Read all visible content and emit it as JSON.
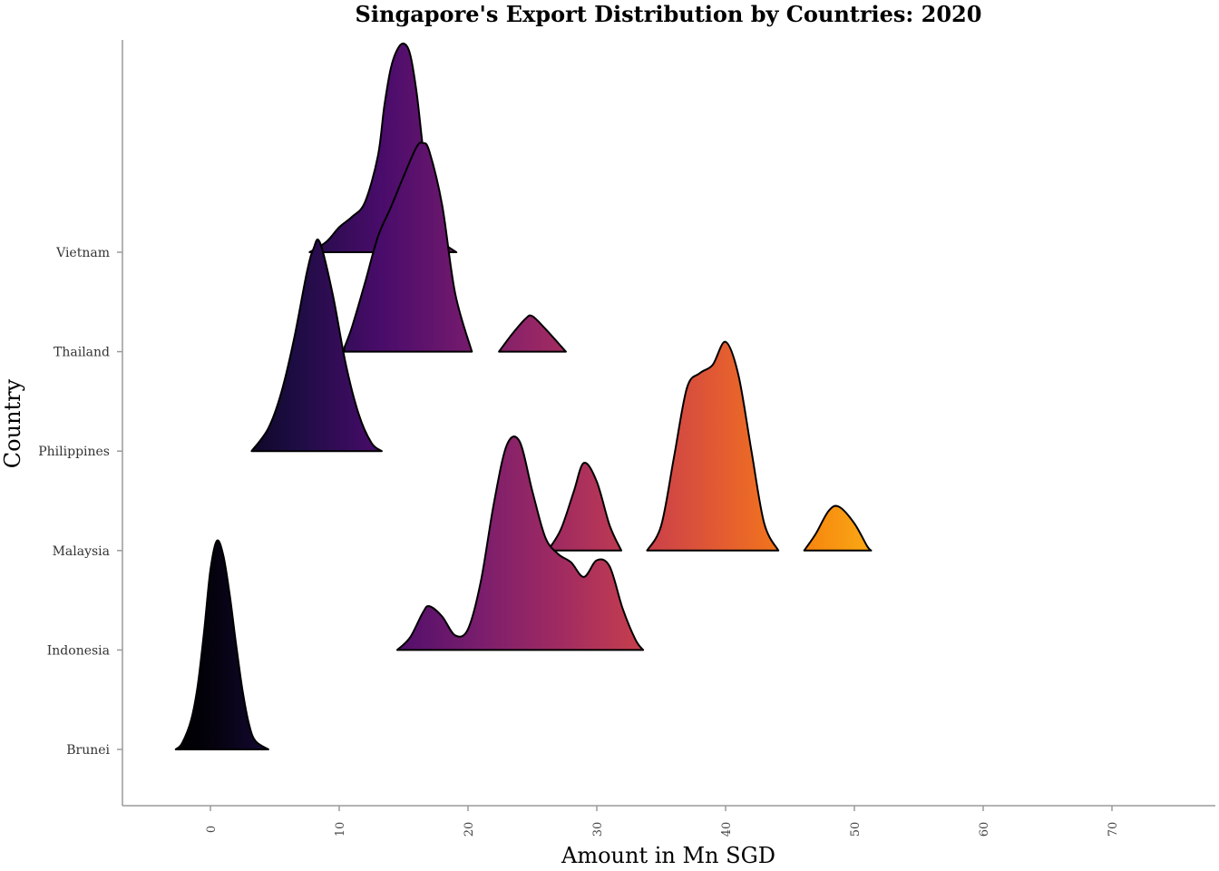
{
  "chart_data": {
    "type": "ridgeline",
    "title": "Singapore's Export Distribution by Countries: 2020",
    "xlabel": "Amount in Mn SGD",
    "ylabel": "Country",
    "xlim": [
      -7,
      78
    ],
    "x_ticks": [
      0,
      10,
      20,
      30,
      40,
      50,
      60,
      70
    ],
    "color_scale": "inferno (by x value)",
    "categories": [
      "Brunei",
      "Indonesia",
      "Malaysia",
      "Philippines",
      "Thailand",
      "Vietnam"
    ],
    "series": [
      {
        "name": "Brunei",
        "x": [
          -2.7,
          -2.2,
          -1.5,
          -1.0,
          -0.5,
          0.0,
          0.5,
          1.0,
          1.5,
          2.0,
          2.5,
          3.0,
          3.5,
          4.5
        ],
        "density": [
          0.0,
          0.03,
          0.14,
          0.3,
          0.56,
          0.86,
          1.0,
          0.93,
          0.74,
          0.5,
          0.28,
          0.12,
          0.04,
          0.0
        ]
      },
      {
        "name": "Indonesia",
        "x": [
          14.5,
          15.5,
          16.5,
          17.0,
          18.0,
          19.0,
          20.0,
          21.0,
          22.0,
          23.0,
          24.0,
          25.0,
          26.0,
          27.0,
          28.0,
          29.0,
          30.0,
          31.0,
          32.0,
          33.0,
          33.6
        ],
        "density": [
          0.0,
          0.06,
          0.18,
          0.21,
          0.16,
          0.07,
          0.1,
          0.33,
          0.7,
          0.98,
          1.0,
          0.76,
          0.54,
          0.46,
          0.42,
          0.35,
          0.43,
          0.4,
          0.2,
          0.05,
          0.0
        ]
      },
      {
        "name": "Malaysia",
        "x": [
          26.2,
          27.2,
          28.2,
          29.0,
          30.0,
          31.0,
          31.9,
          33.9,
          35.0,
          36.0,
          37.0,
          38.0,
          39.0,
          40.0,
          41.0,
          42.0,
          43.0,
          44.1,
          46.1,
          47.0,
          48.0,
          48.8,
          50.0,
          51.0,
          51.3
        ],
        "density": [
          0.0,
          0.1,
          0.28,
          0.42,
          0.33,
          0.12,
          0.0,
          0.0,
          0.12,
          0.45,
          0.78,
          0.85,
          0.89,
          1.0,
          0.84,
          0.48,
          0.13,
          0.0,
          0.0,
          0.08,
          0.19,
          0.21,
          0.13,
          0.02,
          0.0
        ]
      },
      {
        "name": "Philippines",
        "x": [
          3.2,
          4.5,
          5.5,
          6.5,
          7.5,
          8.0,
          8.5,
          9.5,
          10.5,
          11.5,
          12.5,
          13.3
        ],
        "density": [
          0.0,
          0.11,
          0.28,
          0.54,
          0.86,
          0.97,
          1.0,
          0.75,
          0.42,
          0.18,
          0.04,
          0.0
        ]
      },
      {
        "name": "Thailand",
        "x": [
          10.4,
          11.0,
          12.0,
          13.0,
          14.0,
          15.0,
          16.0,
          16.5,
          17.0,
          18.0,
          19.0,
          20.3,
          22.4,
          23.5,
          24.5,
          25.0,
          26.0,
          27.6
        ],
        "density": [
          0.02,
          0.12,
          0.33,
          0.55,
          0.69,
          0.84,
          0.98,
          1.0,
          0.96,
          0.7,
          0.28,
          0.0,
          0.0,
          0.09,
          0.16,
          0.17,
          0.11,
          0.0
        ]
      },
      {
        "name": "Vietnam",
        "x": [
          7.7,
          9.0,
          10.0,
          11.0,
          12.0,
          13.0,
          13.5,
          14.0,
          14.5,
          15.0,
          15.5,
          16.0,
          16.5,
          17.0,
          17.5,
          18.0,
          19.1
        ],
        "density": [
          0.0,
          0.05,
          0.12,
          0.17,
          0.24,
          0.46,
          0.7,
          0.88,
          0.97,
          1.0,
          0.95,
          0.77,
          0.5,
          0.26,
          0.12,
          0.05,
          0.0
        ]
      }
    ]
  }
}
